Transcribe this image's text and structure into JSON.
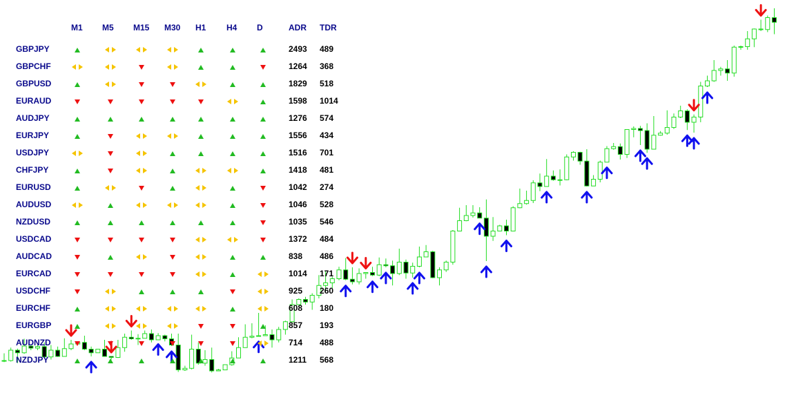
{
  "dashboard": {
    "headers": [
      "M1",
      "M5",
      "M15",
      "M30",
      "H1",
      "H4",
      "D",
      "ADR",
      "TDR"
    ],
    "rows": [
      {
        "pair": "GBPJPY",
        "signals": [
          "up",
          "both",
          "both",
          "both",
          "up",
          "up",
          "up"
        ],
        "adr": "2493",
        "tdr": "489"
      },
      {
        "pair": "GBPCHF",
        "signals": [
          "both",
          "both",
          "down",
          "both",
          "up",
          "up",
          "down"
        ],
        "adr": "1264",
        "tdr": "368"
      },
      {
        "pair": "GBPUSD",
        "signals": [
          "up",
          "both",
          "down",
          "down",
          "both",
          "up",
          "up"
        ],
        "adr": "1829",
        "tdr": "518"
      },
      {
        "pair": "EURAUD",
        "signals": [
          "down",
          "down",
          "down",
          "down",
          "down",
          "both",
          "up"
        ],
        "adr": "1598",
        "tdr": "1014"
      },
      {
        "pair": "AUDJPY",
        "signals": [
          "up",
          "up",
          "up",
          "up",
          "up",
          "up",
          "up"
        ],
        "adr": "1276",
        "tdr": "574"
      },
      {
        "pair": "EURJPY",
        "signals": [
          "up",
          "down",
          "both",
          "both",
          "up",
          "up",
          "up"
        ],
        "adr": "1556",
        "tdr": "434"
      },
      {
        "pair": "USDJPY",
        "signals": [
          "both",
          "down",
          "both",
          "up",
          "up",
          "up",
          "up"
        ],
        "adr": "1516",
        "tdr": "701"
      },
      {
        "pair": "CHFJPY",
        "signals": [
          "up",
          "down",
          "both",
          "up",
          "both",
          "both",
          "up"
        ],
        "adr": "1418",
        "tdr": "481"
      },
      {
        "pair": "EURUSD",
        "signals": [
          "up",
          "both",
          "down",
          "up",
          "both",
          "up",
          "down"
        ],
        "adr": "1042",
        "tdr": "274"
      },
      {
        "pair": "AUDUSD",
        "signals": [
          "both",
          "up",
          "both",
          "both",
          "both",
          "up",
          "down"
        ],
        "adr": "1046",
        "tdr": "528"
      },
      {
        "pair": "NZDUSD",
        "signals": [
          "up",
          "up",
          "up",
          "up",
          "up",
          "up",
          "down"
        ],
        "adr": "1035",
        "tdr": "546"
      },
      {
        "pair": "USDCAD",
        "signals": [
          "down",
          "down",
          "down",
          "down",
          "both",
          "both",
          "down"
        ],
        "adr": "1372",
        "tdr": "484"
      },
      {
        "pair": "AUDCAD",
        "signals": [
          "down",
          "up",
          "both",
          "down",
          "both",
          "up",
          "up"
        ],
        "adr": "838",
        "tdr": "486"
      },
      {
        "pair": "EURCAD",
        "signals": [
          "down",
          "down",
          "down",
          "down",
          "both",
          "up",
          "both"
        ],
        "adr": "1014",
        "tdr": "171"
      },
      {
        "pair": "USDCHF",
        "signals": [
          "down",
          "both",
          "up",
          "up",
          "up",
          "down",
          "both"
        ],
        "adr": "925",
        "tdr": "260"
      },
      {
        "pair": "EURCHF",
        "signals": [
          "up",
          "both",
          "both",
          "both",
          "both",
          "up",
          "both"
        ],
        "adr": "608",
        "tdr": "180"
      },
      {
        "pair": "EURGBP",
        "signals": [
          "up",
          "both",
          "both",
          "both",
          "down",
          "down",
          "up"
        ],
        "adr": "857",
        "tdr": "193"
      },
      {
        "pair": "AUDNZD",
        "signals": [
          "down",
          "down",
          "down",
          "down",
          "down",
          "down",
          "both"
        ],
        "adr": "714",
        "tdr": "488"
      },
      {
        "pair": "NZDJPY",
        "signals": [
          "up",
          "up",
          "up",
          "up",
          "up",
          "up",
          "up"
        ],
        "adr": "1211",
        "tdr": "568"
      }
    ]
  },
  "colors": {
    "pair_text": "#0a0a8c",
    "header_text": "#0a0a8c",
    "up": "#22bb22",
    "down": "#ee1111",
    "both": "#f5c400",
    "bull_candle": "#22dd22",
    "bear_candle": "#000000",
    "buy_arrow": "#1010ee",
    "sell_arrow": "#ee1111"
  },
  "chart_data": {
    "type": "candlestick",
    "note_units": "relative price",
    "candles": [
      [
        20,
        20,
        34,
        17
      ],
      [
        20,
        40,
        45,
        18
      ],
      [
        40,
        35,
        43,
        15
      ],
      [
        35,
        48,
        62,
        33
      ],
      [
        48,
        44,
        48,
        40
      ],
      [
        44,
        47,
        50,
        40
      ],
      [
        47,
        27,
        55,
        25
      ],
      [
        27,
        40,
        50,
        22
      ],
      [
        40,
        28,
        47,
        27
      ],
      [
        28,
        43,
        63,
        28
      ],
      [
        43,
        52,
        60,
        40
      ],
      [
        52,
        55,
        57,
        52
      ],
      [
        55,
        42,
        68,
        40
      ],
      [
        42,
        35,
        47,
        28
      ],
      [
        35,
        42,
        42,
        35
      ],
      [
        42,
        28,
        60,
        28
      ],
      [
        28,
        26,
        28,
        22
      ],
      [
        26,
        45,
        60,
        25
      ],
      [
        45,
        65,
        72,
        37
      ],
      [
        65,
        62,
        78,
        60
      ],
      [
        62,
        63,
        71,
        50
      ],
      [
        63,
        72,
        78,
        67
      ],
      [
        72,
        60,
        80,
        55
      ],
      [
        60,
        68,
        73,
        62
      ],
      [
        68,
        62,
        70,
        57
      ],
      [
        62,
        50,
        72,
        48
      ],
      [
        50,
        2,
        72,
        -2
      ],
      [
        2,
        5,
        10,
        0
      ],
      [
        5,
        42,
        70,
        3
      ],
      [
        42,
        15,
        55,
        12
      ],
      [
        15,
        22,
        40,
        10
      ],
      [
        22,
        0,
        45,
        -3
      ],
      [
        0,
        2,
        4,
        0
      ],
      [
        2,
        12,
        12,
        2
      ],
      [
        12,
        25,
        38,
        10
      ],
      [
        25,
        45,
        65,
        25
      ],
      [
        45,
        65,
        90,
        45
      ],
      [
        65,
        67,
        92,
        63
      ],
      [
        67,
        68,
        112,
        67
      ],
      [
        68,
        70,
        88,
        68
      ],
      [
        70,
        60,
        80,
        45
      ],
      [
        60,
        80,
        85,
        55
      ],
      [
        80,
        95,
        97,
        70
      ],
      [
        95,
        128,
        138,
        93
      ],
      [
        128,
        138,
        140,
        128
      ],
      [
        138,
        133,
        143,
        128
      ],
      [
        133,
        146,
        150,
        118
      ],
      [
        146,
        165,
        185,
        140
      ],
      [
        165,
        170,
        192,
        153
      ],
      [
        170,
        178,
        182,
        160
      ],
      [
        178,
        195,
        201,
        175
      ],
      [
        195,
        177,
        218,
        175
      ],
      [
        177,
        172,
        200,
        167
      ],
      [
        172,
        188,
        198,
        167
      ],
      [
        188,
        190,
        190,
        178
      ],
      [
        190,
        185,
        201,
        183
      ],
      [
        185,
        205,
        219,
        183
      ],
      [
        205,
        203,
        217,
        200
      ],
      [
        203,
        188,
        213,
        165
      ],
      [
        188,
        210,
        236,
        185
      ],
      [
        210,
        189,
        215,
        178
      ],
      [
        189,
        202,
        209,
        180
      ],
      [
        202,
        220,
        240,
        200
      ],
      [
        220,
        230,
        243,
        222
      ],
      [
        230,
        180,
        232,
        179
      ],
      [
        180,
        195,
        200,
        165
      ],
      [
        195,
        210,
        213,
        191
      ],
      [
        210,
        270,
        272,
        205
      ],
      [
        270,
        290,
        315,
        272
      ],
      [
        290,
        300,
        320,
        289
      ],
      [
        300,
        305,
        320,
        296
      ],
      [
        305,
        295,
        316,
        295
      ],
      [
        295,
        260,
        331,
        212
      ],
      [
        260,
        270,
        297,
        251
      ],
      [
        270,
        280,
        282,
        270
      ],
      [
        280,
        270,
        292,
        262
      ],
      [
        270,
        315,
        318,
        270
      ],
      [
        315,
        323,
        352,
        314
      ],
      [
        323,
        329,
        348,
        321
      ],
      [
        329,
        363,
        368,
        324
      ],
      [
        363,
        356,
        381,
        347
      ],
      [
        356,
        376,
        409,
        356
      ],
      [
        376,
        369,
        387,
        367
      ],
      [
        369,
        369,
        389,
        358
      ],
      [
        369,
        413,
        418,
        368
      ],
      [
        413,
        422,
        424,
        406
      ],
      [
        422,
        405,
        423,
        398
      ],
      [
        405,
        357,
        428,
        356
      ],
      [
        357,
        370,
        378,
        357
      ],
      [
        370,
        403,
        406,
        364
      ],
      [
        403,
        429,
        434,
        403
      ],
      [
        429,
        433,
        440,
        427
      ],
      [
        433,
        418,
        439,
        408
      ],
      [
        418,
        466,
        466,
        411
      ],
      [
        466,
        468,
        472,
        451
      ],
      [
        468,
        464,
        473,
        436
      ],
      [
        464,
        428,
        478,
        421
      ],
      [
        428,
        455,
        492,
        429
      ],
      [
        455,
        459,
        463,
        454
      ],
      [
        459,
        470,
        503,
        456
      ],
      [
        470,
        490,
        497,
        467
      ],
      [
        490,
        502,
        512,
        488
      ],
      [
        502,
        480,
        505,
        465
      ],
      [
        480,
        490,
        495,
        460
      ],
      [
        490,
        550,
        558,
        480
      ],
      [
        550,
        560,
        570,
        548
      ],
      [
        560,
        580,
        600,
        558
      ],
      [
        580,
        583,
        587,
        570
      ],
      [
        583,
        575,
        600,
        560
      ],
      [
        575,
        625,
        628,
        568
      ],
      [
        625,
        626,
        628,
        620
      ],
      [
        626,
        641,
        656,
        620
      ],
      [
        641,
        660,
        661,
        625
      ],
      [
        660,
        659,
        678,
        656
      ],
      [
        659,
        682,
        686,
        654
      ],
      [
        682,
        673,
        700,
        650
      ]
    ],
    "buy_signals": [
      13,
      23,
      25,
      38,
      51,
      55,
      57,
      61,
      62,
      71,
      72,
      75,
      81,
      87,
      90,
      95,
      96,
      102,
      103,
      105
    ],
    "sell_signals": [
      10,
      16,
      19,
      52,
      54,
      103,
      113
    ]
  }
}
